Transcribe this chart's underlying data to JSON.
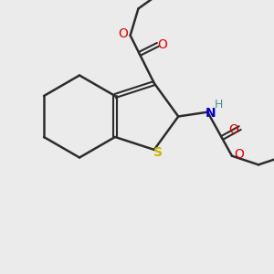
{
  "background_color": "#ebebeb",
  "bond_color": "#2c2c2c",
  "sulfur_color": "#c8b400",
  "oxygen_color": "#e00000",
  "nitrogen_color": "#0000cc",
  "hydrogen_color": "#4a9090",
  "figsize": [
    3.0,
    3.0
  ],
  "dpi": 100,
  "xlim": [
    0,
    10
  ],
  "ylim": [
    0,
    10
  ]
}
